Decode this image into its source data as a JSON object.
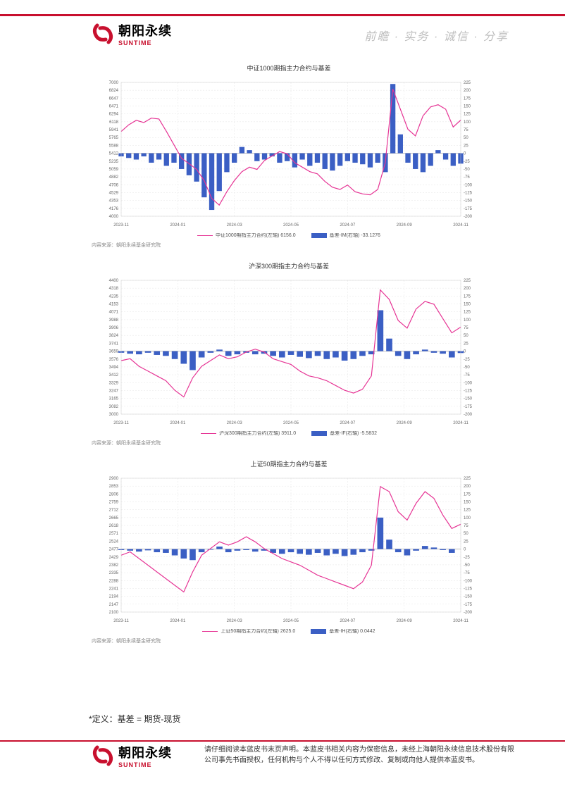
{
  "brand": {
    "cn": "朝阳永续",
    "en": "SUNTIME",
    "tagline": "前瞻 · 实务 · 诚信 · 分享",
    "color_red": "#c8102e",
    "color_gray": "#bfbfbf"
  },
  "definition": "*定义：基差 = 期货-现货",
  "footer": {
    "text": "请仔细阅读本蓝皮书末页声明。本蓝皮书相关内容为保密信息，未经上海朝阳永续信息技术股份有限公司事先书面授权，任何机构与个人不得以任何方式修改、复制或向他人提供本蓝皮书。"
  },
  "charts": [
    {
      "id": "chart1",
      "title": "中证1000期指主力合约与基差",
      "type": "line+bar",
      "source": "内容来源：朝阳永续基金研究院",
      "x_ticks": [
        "2023-11",
        "2024-01",
        "2024-03",
        "2024-05",
        "2024-07",
        "2024-09",
        "2024-11"
      ],
      "left_axis": {
        "min": 4000,
        "max": 7000,
        "step": 176.5,
        "ticks": [
          4000,
          4176,
          4353,
          4529,
          4706,
          4882,
          5059,
          5235,
          5412,
          5588,
          5765,
          5941,
          6118,
          6294,
          6471,
          6647,
          6824,
          7000
        ]
      },
      "right_axis": {
        "min": -200,
        "max": 225,
        "step": 25,
        "ticks": [
          -200,
          -175,
          -150,
          -125,
          -100,
          -75,
          -50,
          -25,
          0,
          25,
          50,
          75,
          100,
          125,
          150,
          175,
          200,
          225
        ]
      },
      "line_color": "#e63595",
      "bar_color": "#3b5fc4",
      "grid_color": "#e5e5e5",
      "background_color": "#ffffff",
      "legend_line": "中证1000期指主力合约(左轴) 6156.0",
      "legend_bar": "基差-IM(右轴) -33.1276",
      "line_values": [
        5900,
        6050,
        6150,
        6100,
        6200,
        6180,
        5900,
        5600,
        5300,
        5180,
        5050,
        4800,
        4400,
        4250,
        4550,
        4800,
        5000,
        5100,
        5050,
        5250,
        5350,
        5450,
        5400,
        5200,
        5100,
        5000,
        4950,
        4780,
        4650,
        4600,
        4700,
        4550,
        4500,
        4480,
        4600,
        5200,
        6850,
        6400,
        5950,
        5800,
        6250,
        6450,
        6500,
        6400,
        6000,
        6156
      ],
      "bar_values": [
        -10,
        -15,
        -20,
        -10,
        -30,
        -20,
        -40,
        -30,
        -50,
        -70,
        -90,
        -140,
        -180,
        -120,
        -60,
        -30,
        20,
        10,
        -25,
        -20,
        -10,
        -30,
        -25,
        -45,
        -20,
        -40,
        -30,
        -50,
        -55,
        -40,
        -25,
        -30,
        -35,
        -45,
        -30,
        -60,
        220,
        60,
        -30,
        -50,
        -60,
        -40,
        10,
        -20,
        -40,
        -33
      ]
    },
    {
      "id": "chart2",
      "title": "沪深300期指主力合约与基差",
      "type": "line+bar",
      "source": "内容来源：朝阳永续基金研究院",
      "x_ticks": [
        "2023-11",
        "2024-01",
        "2024-03",
        "2024-05",
        "2024-07",
        "2024-09",
        "2024-11"
      ],
      "left_axis": {
        "min": 3000,
        "max": 4400,
        "step": 82.4,
        "ticks": [
          3000,
          3082,
          3165,
          3247,
          3329,
          3412,
          3494,
          3576,
          3659,
          3741,
          3824,
          3906,
          3988,
          4071,
          4153,
          4235,
          4318,
          4400
        ]
      },
      "right_axis": {
        "min": -200,
        "max": 225,
        "step": 25,
        "ticks": [
          -200,
          -175,
          -150,
          -125,
          -100,
          -75,
          -50,
          -25,
          0,
          25,
          50,
          75,
          100,
          125,
          150,
          175,
          200,
          225
        ]
      },
      "line_color": "#e63595",
      "bar_color": "#3b5fc4",
      "grid_color": "#e5e5e5",
      "background_color": "#ffffff",
      "legend_line": "沪深300期指主力合约(左轴) 3911.0",
      "legend_bar": "基差-IF(右轴) -5.5832",
      "line_values": [
        3560,
        3580,
        3500,
        3450,
        3400,
        3350,
        3250,
        3180,
        3380,
        3500,
        3560,
        3620,
        3580,
        3600,
        3650,
        3680,
        3650,
        3580,
        3550,
        3520,
        3450,
        3400,
        3380,
        3350,
        3300,
        3250,
        3220,
        3260,
        3400,
        4300,
        4200,
        3980,
        3900,
        4100,
        4180,
        4150,
        4000,
        3850,
        3911
      ],
      "bar_values": [
        -5,
        -8,
        -10,
        -5,
        -12,
        -15,
        -25,
        -40,
        -60,
        -20,
        -5,
        5,
        -15,
        -10,
        -5,
        -10,
        -8,
        -15,
        -20,
        -12,
        -18,
        -22,
        -15,
        -25,
        -20,
        -30,
        -25,
        -15,
        -10,
        130,
        40,
        -15,
        -25,
        -10,
        5,
        -5,
        -8,
        -20,
        -6
      ]
    },
    {
      "id": "chart3",
      "title": "上证50期指主力合约与基差",
      "type": "line+bar",
      "source": "内容来源：朝阳永续基金研究院",
      "x_ticks": [
        "2023-11",
        "2024-01",
        "2024-03",
        "2024-05",
        "2024-07",
        "2024-09",
        "2024-11"
      ],
      "left_axis": {
        "min": 2100,
        "max": 2900,
        "step": 47.1,
        "ticks": [
          2100,
          2147.1,
          2194.1,
          2241.2,
          2288.2,
          2335.3,
          2382.4,
          2429.4,
          2476.5,
          2523.5,
          2570.6,
          2617.6,
          2664.7,
          2711.8,
          2758.8,
          2805.9,
          2852.9,
          2900.0
        ]
      },
      "right_axis": {
        "min": -200,
        "max": 225,
        "step": 25,
        "ticks": [
          -200,
          -175,
          -150,
          -125,
          -100,
          -75,
          -50,
          -25,
          0,
          25,
          50,
          75,
          100,
          125,
          150,
          175,
          200,
          225
        ]
      },
      "line_color": "#e63595",
      "bar_color": "#3b5fc4",
      "grid_color": "#e5e5e5",
      "background_color": "#ffffff",
      "legend_line": "上证50期指主力合约(左轴) 2625.0",
      "legend_bar": "基差-IH(右轴) 0.0442",
      "line_values": [
        2440,
        2460,
        2420,
        2380,
        2340,
        2300,
        2260,
        2220,
        2340,
        2440,
        2480,
        2520,
        2500,
        2520,
        2550,
        2520,
        2480,
        2450,
        2420,
        2400,
        2380,
        2350,
        2320,
        2300,
        2280,
        2260,
        2240,
        2280,
        2380,
        2850,
        2820,
        2700,
        2650,
        2750,
        2820,
        2780,
        2680,
        2600,
        2625
      ],
      "bar_values": [
        -3,
        -5,
        -8,
        -4,
        -10,
        -12,
        -20,
        -30,
        -35,
        -10,
        -2,
        8,
        -10,
        -5,
        -3,
        -8,
        -5,
        -12,
        -15,
        -10,
        -15,
        -18,
        -12,
        -20,
        -15,
        -22,
        -18,
        -10,
        -5,
        100,
        30,
        -10,
        -20,
        -5,
        10,
        5,
        -3,
        -12,
        0
      ]
    }
  ]
}
